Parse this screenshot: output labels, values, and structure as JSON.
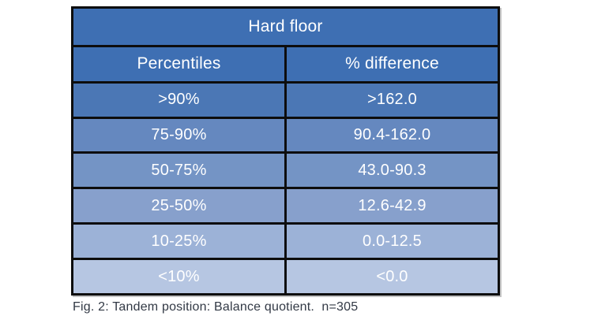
{
  "chart_data": {
    "type": "table",
    "title": "Hard floor",
    "columns": [
      "Percentiles",
      "% difference"
    ],
    "rows": [
      {
        "percentiles": ">90%",
        "difference": ">162.0"
      },
      {
        "percentiles": "75-90%",
        "difference": "90.4-162.0"
      },
      {
        "percentiles": "50-75%",
        "difference": "43.0-90.3"
      },
      {
        "percentiles": "25-50%",
        "difference": "12.6-42.9"
      },
      {
        "percentiles": "10-25%",
        "difference": "0.0-12.5"
      },
      {
        "percentiles": "<10%",
        "difference": "<0.0"
      }
    ],
    "caption": "Fig. 2: Tandem position: Balance quotient.  n=305"
  },
  "colors": {
    "page_bg": "#ffffff",
    "header_bg": "#3e6fb3",
    "row_bgs": [
      "#4b77b5",
      "#6588bf",
      "#7494c5",
      "#87a0cc",
      "#9cb2d7",
      "#b6c6e2"
    ],
    "border": "#0d0d0d",
    "cell_text": "#ffffff",
    "caption_text": "#323945"
  }
}
